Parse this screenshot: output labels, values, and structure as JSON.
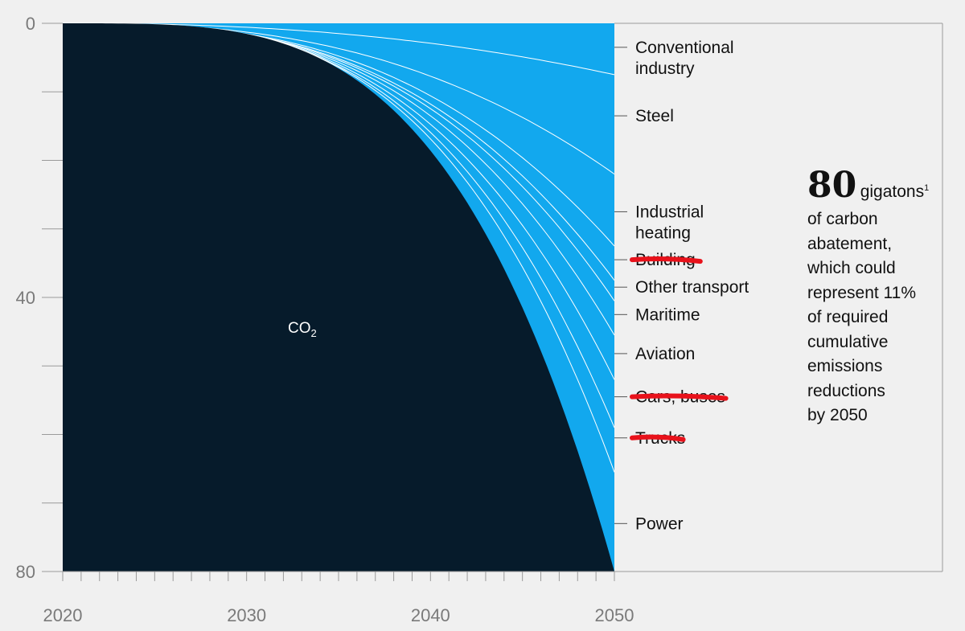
{
  "chart_data": {
    "type": "area",
    "title": "",
    "xlabel": "",
    "ylabel": "",
    "x_ticks": [
      "2020",
      "2030",
      "2040",
      "2050"
    ],
    "y_ticks": [
      "0",
      "40",
      "80"
    ],
    "xlim": [
      2020,
      2050
    ],
    "ylim": [
      0,
      80
    ],
    "y_inverted": true,
    "series": [
      {
        "name": "CO2",
        "subscript": "2",
        "label": "CO",
        "cumulative_at_2050": 80,
        "color": "#061b2b"
      },
      {
        "name": "Power",
        "label": "Power",
        "boundary_at_2050": 80,
        "strikethrough": false
      },
      {
        "name": "Trucks",
        "label": "Trucks",
        "boundary_at_2050": 65.5,
        "strikethrough": true
      },
      {
        "name": "Cars, buses",
        "label": "Cars, buses",
        "boundary_at_2050": 59.0,
        "strikethrough": true
      },
      {
        "name": "Aviation",
        "label": "Aviation",
        "boundary_at_2050": 52.0,
        "strikethrough": false
      },
      {
        "name": "Maritime",
        "label": "Maritime",
        "boundary_at_2050": 45.5,
        "strikethrough": false
      },
      {
        "name": "Other transport",
        "label": "Other transport",
        "boundary_at_2050": 40.5,
        "strikethrough": false
      },
      {
        "name": "Building",
        "label": "Building",
        "boundary_at_2050": 37.5,
        "strikethrough": true
      },
      {
        "name": "Industrial heating",
        "label": "Industrial heating",
        "boundary_at_2050": 32.5,
        "strikethrough": false
      },
      {
        "name": "Steel",
        "label": "Steel",
        "boundary_at_2050": 22.0,
        "strikethrough": false
      },
      {
        "name": "Conventional industry",
        "label": "Conventional industry",
        "boundary_at_2050": 7.5,
        "strikethrough": false
      }
    ],
    "sector_labels": [
      {
        "lines": [
          "Conventional",
          "industry"
        ],
        "value": 3.5,
        "strikethrough": false
      },
      {
        "lines": [
          "Steel"
        ],
        "value": 13.5,
        "strikethrough": false
      },
      {
        "lines": [
          "Industrial",
          "heating"
        ],
        "value": 27.5,
        "strikethrough": false
      },
      {
        "lines": [
          "Building"
        ],
        "value": 34.5,
        "strikethrough": true
      },
      {
        "lines": [
          "Other transport"
        ],
        "value": 38.5,
        "strikethrough": false
      },
      {
        "lines": [
          "Maritime"
        ],
        "value": 42.5,
        "strikethrough": false
      },
      {
        "lines": [
          "Aviation"
        ],
        "value": 48.2,
        "strikethrough": false
      },
      {
        "lines": [
          "Cars, buses"
        ],
        "value": 54.5,
        "strikethrough": true
      },
      {
        "lines": [
          "Trucks"
        ],
        "value": 60.5,
        "strikethrough": true
      },
      {
        "lines": [
          "Power"
        ],
        "value": 73.0,
        "strikethrough": false
      }
    ],
    "annotation": {
      "value": "80",
      "unit": "gigatons",
      "footnote": "1",
      "lines": [
        "of carbon",
        "abatement,",
        "which could",
        "represent 11%",
        "of required",
        "cumulative",
        "emissions",
        "reductions",
        "by 2050"
      ]
    },
    "colors": {
      "co2": "#061b2b",
      "abatement": "#12a8ee",
      "boundary": "#ffffff",
      "strike": "#e8121b",
      "background": "#f0f0f0",
      "axis": "#9a9a9a"
    }
  }
}
